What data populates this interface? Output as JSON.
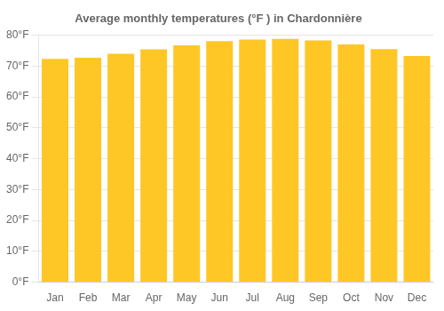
{
  "chart_data": {
    "type": "bar",
    "title": "Average monthly temperatures (°F ) in Chardonnière",
    "categories": [
      "Jan",
      "Feb",
      "Mar",
      "Apr",
      "May",
      "Jun",
      "Jul",
      "Aug",
      "Sep",
      "Oct",
      "Nov",
      "Dec"
    ],
    "values": [
      72.3,
      72.7,
      74.0,
      75.4,
      76.7,
      78.1,
      78.6,
      78.8,
      78.3,
      77.0,
      75.5,
      73.3
    ],
    "color": "#FFC726",
    "ylim": [
      0,
      80
    ],
    "yticks": [
      {
        "value": 0,
        "label": "0°F"
      },
      {
        "value": 10,
        "label": "10°F"
      },
      {
        "value": 20,
        "label": "20°F"
      },
      {
        "value": 30,
        "label": "30°F"
      },
      {
        "value": 40,
        "label": "40°F"
      },
      {
        "value": 50,
        "label": "50°F"
      },
      {
        "value": 60,
        "label": "60°F"
      },
      {
        "value": 70,
        "label": "70°F"
      },
      {
        "value": 80,
        "label": "80°F"
      }
    ],
    "grid": true
  }
}
